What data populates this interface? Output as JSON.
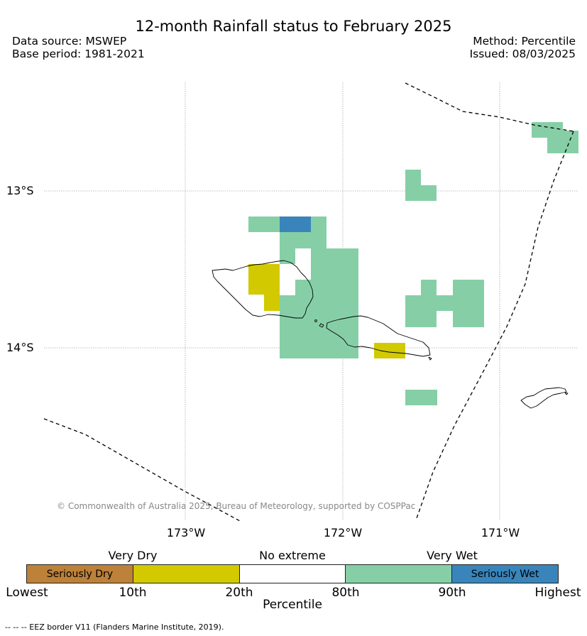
{
  "title": "12-month Rainfall status to February 2025",
  "info": {
    "data_source": "Data source: MSWEP",
    "base_period": "Base period: 1981-2021",
    "method": "Method: Percentile",
    "issued": "Issued: 08/03/2025"
  },
  "map": {
    "lat_labels": [
      "13°S",
      "14°S"
    ],
    "lon_labels": [
      "173°W",
      "172°W",
      "171°W"
    ],
    "copyright": "© Commonwealth of Australia 2025, Bureau of Meteorology, supported by COSPPac"
  },
  "legend": {
    "category_labels": [
      "Very Dry",
      "No extreme",
      "Very Wet"
    ],
    "segments": [
      {
        "label": "Seriously Dry",
        "color": "#bd8139"
      },
      {
        "label": "",
        "color": "#d2c900"
      },
      {
        "label": "",
        "color": "#ffffff"
      },
      {
        "label": "",
        "color": "#86cfa6"
      },
      {
        "label": "Seriously Wet",
        "color": "#3985bb"
      }
    ],
    "ticks": [
      "Lowest",
      "10th",
      "20th",
      "80th",
      "90th",
      "Highest"
    ],
    "axis_label": "Percentile"
  },
  "footer": "--  --  -- EEZ border V11 (Flanders Marine Institute, 2019)."
}
